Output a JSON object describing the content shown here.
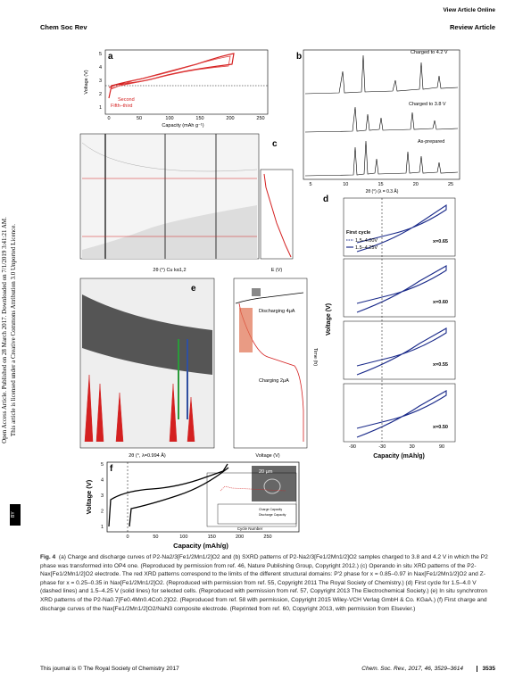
{
  "header": {
    "left": "Chem Soc Rev",
    "top_right": "View Article Online",
    "right": "Review Article"
  },
  "sidebar": {
    "line1": "Open Access Article. Published on 28 March 2017. Downloaded on 7/1/2019 3:41:21 AM.",
    "line2": "This article is licensed under a Creative Commons Attribution 3.0 Unported Licence.",
    "badge": "BY"
  },
  "figure": {
    "a": {
      "label": "a",
      "y_label": "Voltage (V)",
      "x_label": "Capacity (mAh g⁻¹)",
      "second": "Second",
      "fifth_third": "Fifth–third",
      "x_ticks": [
        0,
        50,
        100,
        150,
        200,
        250
      ],
      "y_ticks": [
        1,
        2,
        3,
        4,
        5
      ]
    },
    "b": {
      "label": "b",
      "charged_42": "Charged to 4.2 V",
      "charged_38": "Charged to 3.8 V",
      "as_prepared": "As-prepared",
      "x_label": "2θ (°) (λ = 0.3 Å)",
      "x_ticks": [
        5,
        10,
        15,
        20,
        25
      ]
    },
    "c": {
      "label": "c",
      "x_label": "2θ (°) Cu kα1,2",
      "e_label": "E (V)"
    },
    "d": {
      "label": "d",
      "legend_title": "First cycle",
      "legend_dashed": "1.5–4.00V",
      "legend_solid": "1.5–4.25V",
      "panels": [
        "x=0.65",
        "x=0.60",
        "x=0.55",
        "x=0.50"
      ],
      "y_label": "Voltage (V)",
      "x_label": "Capacity (mAh/g)",
      "x_ticks": [
        -90,
        -30,
        30,
        90
      ]
    },
    "e": {
      "label": "e",
      "discharging": "Discharging 4μA",
      "charging": "Charging 2μA",
      "voltage_label": "Voltage (V)",
      "time_label": "Time (h)",
      "x_label": "2θ (°, λ=0.994 Å)"
    },
    "f": {
      "label": "f",
      "y_label": "Voltage (V)",
      "x_label": "Capacity (mAh/g)",
      "x_ticks": [
        0,
        50,
        100,
        150,
        200,
        250
      ],
      "y_ticks": [
        1,
        2,
        3,
        4,
        5
      ],
      "scale_bar": "20 μm",
      "inset_x_label": "Cycle Number",
      "inset_charge": "Charge Capacity",
      "inset_discharge": "Discharge Capacity"
    }
  },
  "caption": {
    "label": "Fig. 4",
    "text": "(a) Charge and discharge curves of P2-Na2/3[Fe1/2Mn1/2]O2 and (b) SXRD patterns of P2-Na2/3[Fe1/2Mn1/2]O2 samples charged to 3.8 and 4.2 V in which the P2 phase was transformed into OP4 one. (Reproduced by permission from ref. 46, Nature Publishing Group, Copyright 2012.) (c) Operando in situ XRD patterns of the P2-Nax[Fe1/2Mn1/2]O2 electrode. The red XRD patterns correspond to the limits of the different structural domains: P′2 phase for x = 0.85–0.97 in Nax[Fe1/2Mn1/2]O2 and Z-phase for x = 0.25–0.35 in Nax[Fe1/2Mn1/2]O2. (Reproduced with permission from ref. 55, Copyright 2011 The Royal Society of Chemistry.) (d) First cycle for 1.5–4.0 V (dashed lines) and 1.5–4.25 V (solid lines) for selected cells. (Reproduced with permission from ref. 57, Copyright 2013 The Electrochemical Society.) (e) In situ synchrotron XRD patterns of the P2-Na0.7[Fe0.4Mn0.4Co0.2]O2. (Reproduced from ref. 58 with permission, Copyright 2015 Wiley-VCH Verlag GmbH & Co. KGaA.) (f) First charge and discharge curves of the Nax[Fe1/2Mn1/2]O2/NaN3 composite electrode. (Reprinted from ref. 60, Copyright 2013, with permission from Elsevier.)"
  },
  "footer": {
    "left": "This journal is © The Royal Society of Chemistry 2017",
    "journal": "Chem. Soc. Rev., 2017, 46, 3529–3614",
    "page": "3535"
  }
}
